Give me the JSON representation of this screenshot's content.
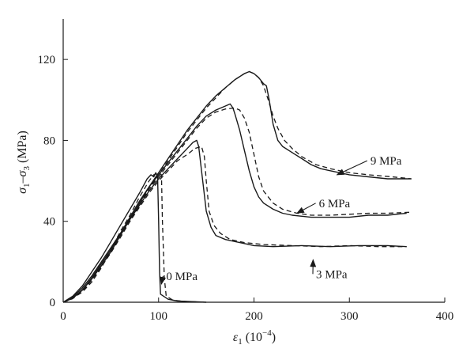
{
  "chart_data": {
    "type": "line",
    "title": "",
    "xlabel": {
      "symbol": "ε",
      "sub": "1",
      "unit": " (10",
      "exp": "−4",
      "close": ")"
    },
    "ylabel": {
      "s1": "σ",
      "sub1": "1",
      "dash": "–",
      "s2": "σ",
      "sub2": "3",
      "unit": " (MPa)"
    },
    "xlim": [
      0,
      400
    ],
    "ylim": [
      0,
      140
    ],
    "xticks": [
      0,
      100,
      200,
      300,
      400
    ],
    "yticks": [
      0,
      40,
      80,
      120
    ],
    "xtick_labels": [
      "0",
      "100",
      "200",
      "300",
      "400"
    ],
    "ytick_labels": [
      "0",
      "40",
      "80",
      "120"
    ],
    "grid": false,
    "legend": "none",
    "line_color": "#1a1a1a",
    "note": "Each confining pressure has a solid curve and a dashed curve",
    "series": [
      {
        "name": "0 MPa",
        "solid": [
          [
            0,
            0
          ],
          [
            10,
            3
          ],
          [
            20,
            8
          ],
          [
            30,
            15
          ],
          [
            40,
            22
          ],
          [
            50,
            30
          ],
          [
            60,
            38
          ],
          [
            70,
            46
          ],
          [
            80,
            54
          ],
          [
            88,
            61
          ],
          [
            92,
            63
          ],
          [
            95,
            62
          ],
          [
            97,
            64
          ],
          [
            99,
            62
          ],
          [
            100,
            40
          ],
          [
            101,
            15
          ],
          [
            102,
            4
          ],
          [
            110,
            1.5
          ],
          [
            120,
            0.6
          ],
          [
            150,
            0
          ]
        ],
        "dashed": [
          [
            0,
            0
          ],
          [
            10,
            2
          ],
          [
            20,
            5
          ],
          [
            30,
            10
          ],
          [
            40,
            17
          ],
          [
            50,
            26
          ],
          [
            60,
            35
          ],
          [
            70,
            43
          ],
          [
            80,
            52
          ],
          [
            90,
            60
          ],
          [
            95,
            63
          ],
          [
            100,
            64
          ],
          [
            103,
            63
          ],
          [
            104,
            40
          ],
          [
            106,
            12
          ],
          [
            108,
            3
          ],
          [
            115,
            1
          ],
          [
            130,
            0.3
          ],
          [
            150,
            0
          ]
        ]
      },
      {
        "name": "3 MPa",
        "solid": [
          [
            0,
            0
          ],
          [
            10,
            2.5
          ],
          [
            20,
            7
          ],
          [
            30,
            13
          ],
          [
            40,
            20
          ],
          [
            50,
            27
          ],
          [
            60,
            34
          ],
          [
            70,
            41
          ],
          [
            80,
            48
          ],
          [
            90,
            55
          ],
          [
            100,
            61
          ],
          [
            110,
            66
          ],
          [
            120,
            71
          ],
          [
            130,
            76
          ],
          [
            136,
            79
          ],
          [
            140,
            80
          ],
          [
            142,
            77
          ],
          [
            145,
            65
          ],
          [
            150,
            45
          ],
          [
            155,
            37
          ],
          [
            160,
            33
          ],
          [
            170,
            31
          ],
          [
            180,
            30
          ],
          [
            190,
            29
          ],
          [
            200,
            28
          ],
          [
            220,
            27.5
          ],
          [
            250,
            28
          ],
          [
            280,
            27.5
          ],
          [
            310,
            28
          ],
          [
            340,
            28
          ],
          [
            360,
            27.5
          ]
        ],
        "dashed": [
          [
            0,
            0
          ],
          [
            10,
            2
          ],
          [
            20,
            6
          ],
          [
            30,
            12
          ],
          [
            40,
            19
          ],
          [
            50,
            26
          ],
          [
            60,
            33
          ],
          [
            70,
            40
          ],
          [
            80,
            47
          ],
          [
            90,
            54
          ],
          [
            100,
            60
          ],
          [
            110,
            65
          ],
          [
            120,
            70
          ],
          [
            130,
            73
          ],
          [
            138,
            76
          ],
          [
            145,
            77
          ],
          [
            148,
            72
          ],
          [
            150,
            60
          ],
          [
            153,
            45
          ],
          [
            158,
            38
          ],
          [
            165,
            34
          ],
          [
            175,
            31
          ],
          [
            190,
            29.5
          ],
          [
            210,
            28.5
          ],
          [
            240,
            28
          ],
          [
            270,
            27.5
          ],
          [
            300,
            28
          ],
          [
            330,
            27.5
          ],
          [
            360,
            27.5
          ]
        ]
      },
      {
        "name": "6 MPa",
        "solid": [
          [
            0,
            0
          ],
          [
            10,
            2
          ],
          [
            20,
            6
          ],
          [
            30,
            12
          ],
          [
            40,
            19
          ],
          [
            50,
            26
          ],
          [
            60,
            34
          ],
          [
            70,
            42
          ],
          [
            80,
            50
          ],
          [
            90,
            57
          ],
          [
            100,
            63
          ],
          [
            110,
            69
          ],
          [
            120,
            75
          ],
          [
            130,
            81
          ],
          [
            140,
            87
          ],
          [
            150,
            92
          ],
          [
            160,
            95
          ],
          [
            170,
            97
          ],
          [
            175,
            98
          ],
          [
            178,
            96
          ],
          [
            180,
            93
          ],
          [
            185,
            85
          ],
          [
            190,
            75
          ],
          [
            195,
            65
          ],
          [
            200,
            57
          ],
          [
            205,
            52
          ],
          [
            210,
            49
          ],
          [
            220,
            46
          ],
          [
            230,
            44
          ],
          [
            240,
            43
          ],
          [
            260,
            42
          ],
          [
            280,
            42
          ],
          [
            300,
            42
          ],
          [
            320,
            43
          ],
          [
            340,
            43
          ],
          [
            360,
            44
          ]
        ],
        "dashed": [
          [
            0,
            0
          ],
          [
            10,
            1.8
          ],
          [
            20,
            5.5
          ],
          [
            30,
            11
          ],
          [
            40,
            18
          ],
          [
            50,
            25
          ],
          [
            60,
            33
          ],
          [
            70,
            41
          ],
          [
            80,
            49
          ],
          [
            90,
            56
          ],
          [
            100,
            62
          ],
          [
            110,
            68
          ],
          [
            120,
            74
          ],
          [
            130,
            80
          ],
          [
            140,
            86
          ],
          [
            150,
            91
          ],
          [
            160,
            94
          ],
          [
            170,
            95.5
          ],
          [
            180,
            96
          ],
          [
            185,
            95
          ],
          [
            190,
            91
          ],
          [
            195,
            84
          ],
          [
            200,
            73
          ],
          [
            205,
            62
          ],
          [
            210,
            55
          ],
          [
            220,
            49
          ],
          [
            230,
            46
          ],
          [
            245,
            44
          ],
          [
            260,
            43
          ],
          [
            280,
            43
          ],
          [
            300,
            43.5
          ],
          [
            320,
            44
          ],
          [
            340,
            44
          ],
          [
            365,
            44.5
          ]
        ]
      },
      {
        "name": "9 MPa",
        "solid": [
          [
            0,
            0
          ],
          [
            10,
            2
          ],
          [
            20,
            6
          ],
          [
            30,
            11.5
          ],
          [
            40,
            18
          ],
          [
            50,
            25
          ],
          [
            60,
            33
          ],
          [
            70,
            41
          ],
          [
            80,
            49
          ],
          [
            90,
            57
          ],
          [
            100,
            64
          ],
          [
            110,
            71
          ],
          [
            120,
            78
          ],
          [
            130,
            85
          ],
          [
            140,
            91
          ],
          [
            150,
            97
          ],
          [
            160,
            102
          ],
          [
            170,
            106
          ],
          [
            180,
            110
          ],
          [
            190,
            113
          ],
          [
            195,
            114
          ],
          [
            200,
            113
          ],
          [
            205,
            111
          ],
          [
            210,
            108
          ],
          [
            213,
            107
          ],
          [
            216,
            100
          ],
          [
            220,
            88
          ],
          [
            225,
            80
          ],
          [
            230,
            77
          ],
          [
            240,
            74
          ],
          [
            250,
            71
          ],
          [
            260,
            68
          ],
          [
            270,
            66
          ],
          [
            280,
            65
          ],
          [
            300,
            63
          ],
          [
            320,
            62
          ],
          [
            340,
            61
          ],
          [
            365,
            61
          ]
        ],
        "dashed": [
          [
            0,
            0
          ],
          [
            10,
            1.8
          ],
          [
            20,
            5.5
          ],
          [
            30,
            11
          ],
          [
            40,
            17.5
          ],
          [
            50,
            24.5
          ],
          [
            60,
            32
          ],
          [
            70,
            40
          ],
          [
            80,
            48
          ],
          [
            90,
            56
          ],
          [
            100,
            63
          ],
          [
            110,
            70
          ],
          [
            120,
            77
          ],
          [
            130,
            84
          ],
          [
            140,
            90
          ],
          [
            150,
            96
          ],
          [
            160,
            101
          ],
          [
            170,
            106
          ],
          [
            180,
            110
          ],
          [
            190,
            113
          ],
          [
            195,
            114
          ],
          [
            200,
            113
          ],
          [
            205,
            111
          ],
          [
            210,
            107
          ],
          [
            215,
            100
          ],
          [
            220,
            92
          ],
          [
            225,
            86
          ],
          [
            232,
            80
          ],
          [
            240,
            76
          ],
          [
            250,
            72
          ],
          [
            265,
            68
          ],
          [
            280,
            66
          ],
          [
            300,
            64
          ],
          [
            320,
            63
          ],
          [
            345,
            62
          ],
          [
            365,
            61
          ]
        ]
      }
    ],
    "annotations": [
      {
        "text": "0 MPa",
        "label_xy": [
          108,
          11
        ],
        "arrow_to": [
          103,
          9
        ]
      },
      {
        "text": "3 MPa",
        "label_xy": [
          265,
          12
        ],
        "arrow_to": [
          262,
          21
        ]
      },
      {
        "text": "6 MPa",
        "label_xy": [
          268,
          47
        ],
        "arrow_to": [
          245,
          44
        ]
      },
      {
        "text": "9 MPa",
        "label_xy": [
          322,
          68
        ],
        "arrow_to": [
          287,
          63
        ]
      }
    ]
  }
}
